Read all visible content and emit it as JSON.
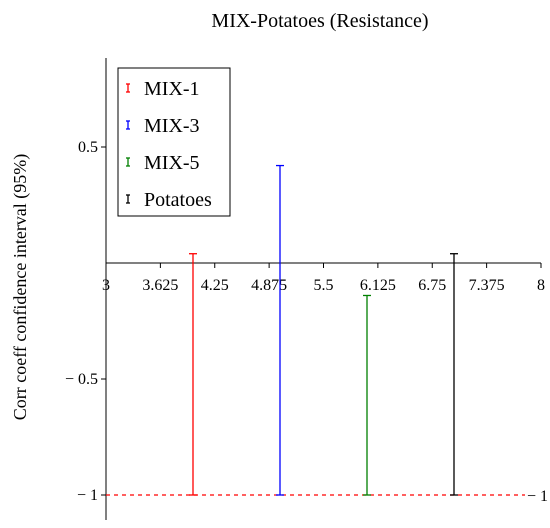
{
  "chart_data": {
    "type": "errorbar",
    "title": "MIX-Potatoes (Resistance)",
    "xlabel": "",
    "ylabel": "Corr coeff confidence interval (95%)",
    "xlim": [
      3,
      8
    ],
    "ylim": [
      -1,
      1
    ],
    "x_ticks": [
      "3",
      "3.625",
      "4.25",
      "4.875",
      "5.5",
      "6.125",
      "6.75",
      "7.375",
      "8"
    ],
    "y_ticks": [
      {
        "value": 0.5,
        "label": "0.5"
      },
      {
        "value": -0.5,
        "label": "− 0.5"
      },
      {
        "value": -1,
        "label": "− 1"
      }
    ],
    "reference_line": {
      "value": -1,
      "label": "− 1",
      "color": "#ff0000",
      "style": "dashed"
    },
    "legend": {
      "position": "top-left"
    },
    "series": [
      {
        "name": "MIX-1",
        "x": 4,
        "low": -1,
        "high": 0.04,
        "color": "#ff0000"
      },
      {
        "name": "MIX-3",
        "x": 5,
        "low": -1,
        "high": 0.42,
        "color": "#0000ff"
      },
      {
        "name": "MIX-5",
        "x": 6,
        "low": -1,
        "high": -0.14,
        "color": "#008000"
      },
      {
        "name": "Potatoes",
        "x": 7,
        "low": -1,
        "high": 0.04,
        "color": "#000000"
      }
    ]
  }
}
